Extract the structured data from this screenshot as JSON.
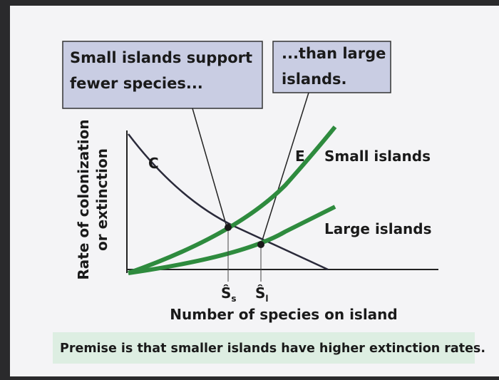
{
  "callouts": [
    {
      "text": "Small islands support fewer species..."
    },
    {
      "text": "...than large islands."
    }
  ],
  "curve_labels": {
    "colonization": "C",
    "extinction": "E",
    "small": "Small islands",
    "large": "Large islands"
  },
  "y_axis_label": [
    "Rate of colonization",
    "or extinction"
  ],
  "equilibria": [
    {
      "symbol": "Ŝ",
      "subscript": "s"
    },
    {
      "symbol": "Ŝ",
      "subscript": "l"
    }
  ],
  "x_axis_label": "Number of species on island",
  "caption": "Premise is that smaller islands have higher extinction rates."
}
